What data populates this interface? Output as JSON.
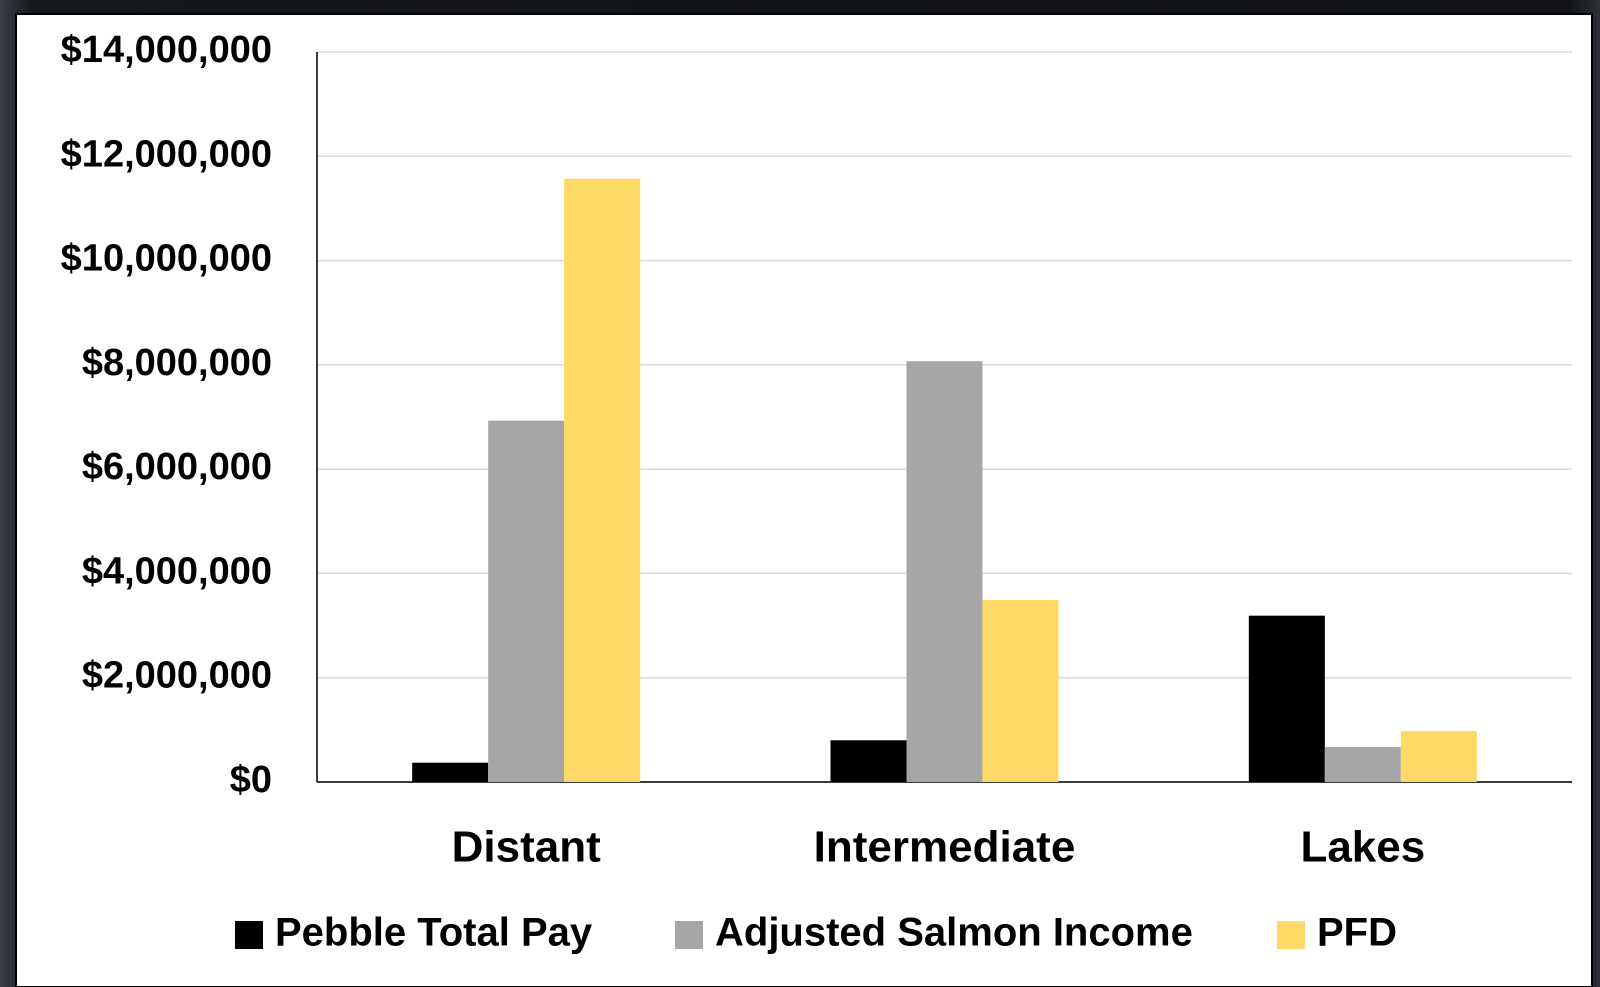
{
  "chart_data": {
    "type": "bar",
    "categories": [
      "Distant",
      "Intermediate",
      "Lakes"
    ],
    "series": [
      {
        "name": "Pebble Total Pay",
        "color": "#000000",
        "values": [
          370000,
          800000,
          3190000
        ]
      },
      {
        "name": "Adjusted Salmon Income",
        "color": "#a6a6a6",
        "values": [
          6930000,
          8070000,
          670000
        ]
      },
      {
        "name": "PFD",
        "color": "#ffd966",
        "values": [
          11570000,
          3490000,
          980000
        ]
      }
    ],
    "ylim": [
      0,
      14000000
    ],
    "yticks": [
      {
        "value": 0,
        "label": "$0"
      },
      {
        "value": 2000000,
        "label": "$2,000,000"
      },
      {
        "value": 4000000,
        "label": "$4,000,000"
      },
      {
        "value": 6000000,
        "label": "$6,000,000"
      },
      {
        "value": 8000000,
        "label": "$8,000,000"
      },
      {
        "value": 10000000,
        "label": "$10,000,000"
      },
      {
        "value": 12000000,
        "label": "$12,000,000"
      },
      {
        "value": 14000000,
        "label": "$14,000,000"
      }
    ],
    "grid": true,
    "legend": "bottom"
  }
}
